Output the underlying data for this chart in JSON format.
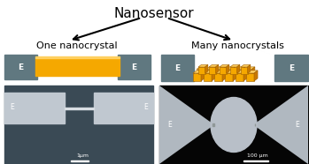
{
  "title": "Nanosensor",
  "left_label": "One nanocrystal",
  "right_label": "Many nanocrystals",
  "bg_color": "#ffffff",
  "electrode_color": "#607880",
  "nanorod_color": "#f5a800",
  "nanorod_top_color": "#ffd060",
  "nanorod_side_color": "#c87800",
  "title_fontsize": 11,
  "label_fontsize": 8,
  "electrode_label": "E",
  "left_photo_bg": "#3a4a55",
  "right_photo_bg": "#050505",
  "scale_bar_left": "1μm",
  "scale_bar_right": "100 μm",
  "photo_electrode_color": "#c0c8d0",
  "right_electrode_color": "#b0b8c0"
}
